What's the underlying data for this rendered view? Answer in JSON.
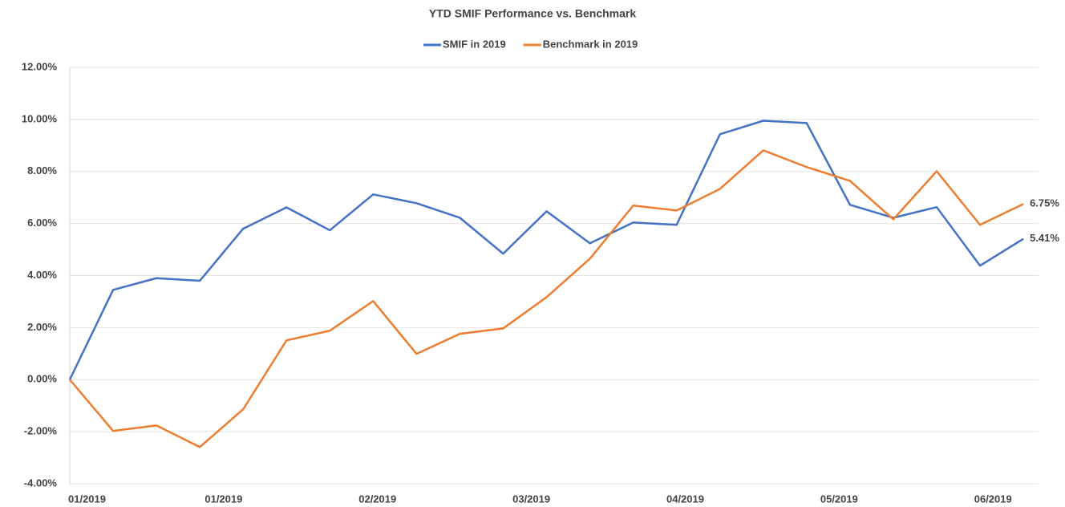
{
  "chart_data": {
    "type": "line",
    "title": "YTD SMIF Performance vs. Benchmark",
    "x": [
      0,
      1,
      2,
      3,
      4,
      5,
      6,
      7,
      8,
      9,
      10,
      11,
      12,
      13,
      14,
      15,
      16,
      17,
      18,
      19,
      20,
      21,
      22
    ],
    "xlim": [
      0,
      22.35
    ],
    "xticks": [
      {
        "value": 0,
        "label": "01/2019"
      },
      {
        "value": 3.55,
        "label": "01/2019"
      },
      {
        "value": 7.1,
        "label": "02/2019"
      },
      {
        "value": 10.65,
        "label": "03/2019"
      },
      {
        "value": 14.2,
        "label": "04/2019"
      },
      {
        "value": 17.75,
        "label": "05/2019"
      },
      {
        "value": 21.3,
        "label": "06/2019"
      }
    ],
    "ylim": [
      -4,
      12
    ],
    "yticks": [
      {
        "value": -4,
        "label": "-4.00%"
      },
      {
        "value": -2,
        "label": "-2.00%"
      },
      {
        "value": 0,
        "label": "0.00%"
      },
      {
        "value": 2,
        "label": "2.00%"
      },
      {
        "value": 4,
        "label": "4.00%"
      },
      {
        "value": 6,
        "label": "6.00%"
      },
      {
        "value": 8,
        "label": "8.00%"
      },
      {
        "value": 10,
        "label": "10.00%"
      },
      {
        "value": 12,
        "label": "12.00%"
      }
    ],
    "grid": true,
    "legend": "top",
    "series": [
      {
        "name": "SMIF in 2019",
        "color": "#4472c4",
        "values": [
          0,
          3.45,
          3.9,
          3.8,
          5.8,
          6.62,
          5.74,
          7.12,
          6.78,
          6.22,
          4.84,
          6.47,
          5.24,
          6.04,
          5.95,
          9.43,
          9.95,
          9.86,
          6.72,
          6.22,
          6.63,
          4.38,
          5.41
        ],
        "value_labels": [
          null,
          null,
          null,
          null,
          null,
          null,
          null,
          null,
          null,
          null,
          null,
          null,
          null,
          null,
          null,
          null,
          null,
          null,
          null,
          null,
          null,
          null,
          "5.41%"
        ]
      },
      {
        "name": "Benchmark in 2019",
        "color": "#ed7d31",
        "values": [
          0,
          -1.97,
          -1.76,
          -2.59,
          -1.14,
          1.51,
          1.88,
          3.02,
          0.99,
          1.76,
          1.97,
          3.17,
          4.65,
          6.69,
          6.5,
          7.33,
          8.81,
          8.17,
          7.64,
          6.16,
          8.01,
          5.95,
          6.75
        ],
        "value_labels": [
          null,
          null,
          null,
          null,
          null,
          null,
          null,
          null,
          null,
          null,
          null,
          null,
          null,
          null,
          null,
          null,
          null,
          null,
          null,
          null,
          null,
          null,
          "6.75%"
        ]
      }
    ]
  }
}
